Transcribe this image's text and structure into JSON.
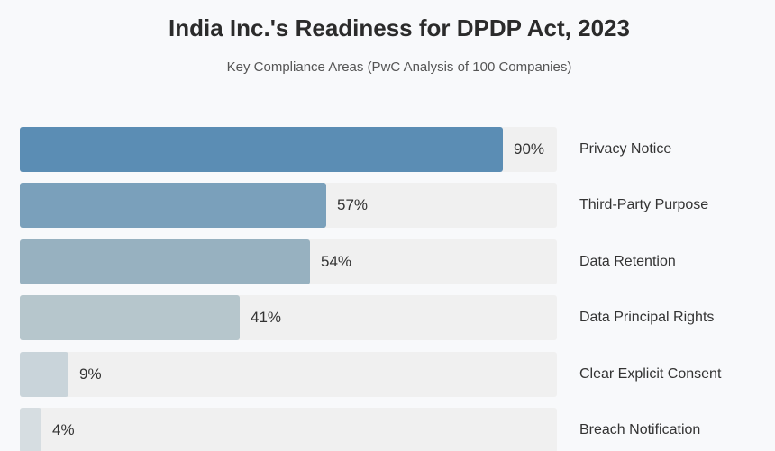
{
  "chart_data": {
    "type": "bar",
    "orientation": "horizontal",
    "title": "India Inc.'s Readiness for DPDP Act, 2023",
    "subtitle": "Key Compliance Areas (PwC Analysis of 100 Companies)",
    "categories": [
      "Privacy Notice",
      "Third-Party Purpose",
      "Data Retention",
      "Data Principal Rights",
      "Clear Explicit Consent",
      "Breach Notification"
    ],
    "values": [
      90,
      57,
      54,
      41,
      9,
      4
    ],
    "value_labels": [
      "90%",
      "57%",
      "54%",
      "41%",
      "9%",
      "4%"
    ],
    "xlim": [
      0,
      100
    ],
    "bar_colors": [
      "#5b8db4",
      "#7aa0bb",
      "#97b1c0",
      "#b6c6cc",
      "#c9d4da",
      "#d6dde1"
    ],
    "track_color": "#f0f0f0",
    "grid": false
  }
}
